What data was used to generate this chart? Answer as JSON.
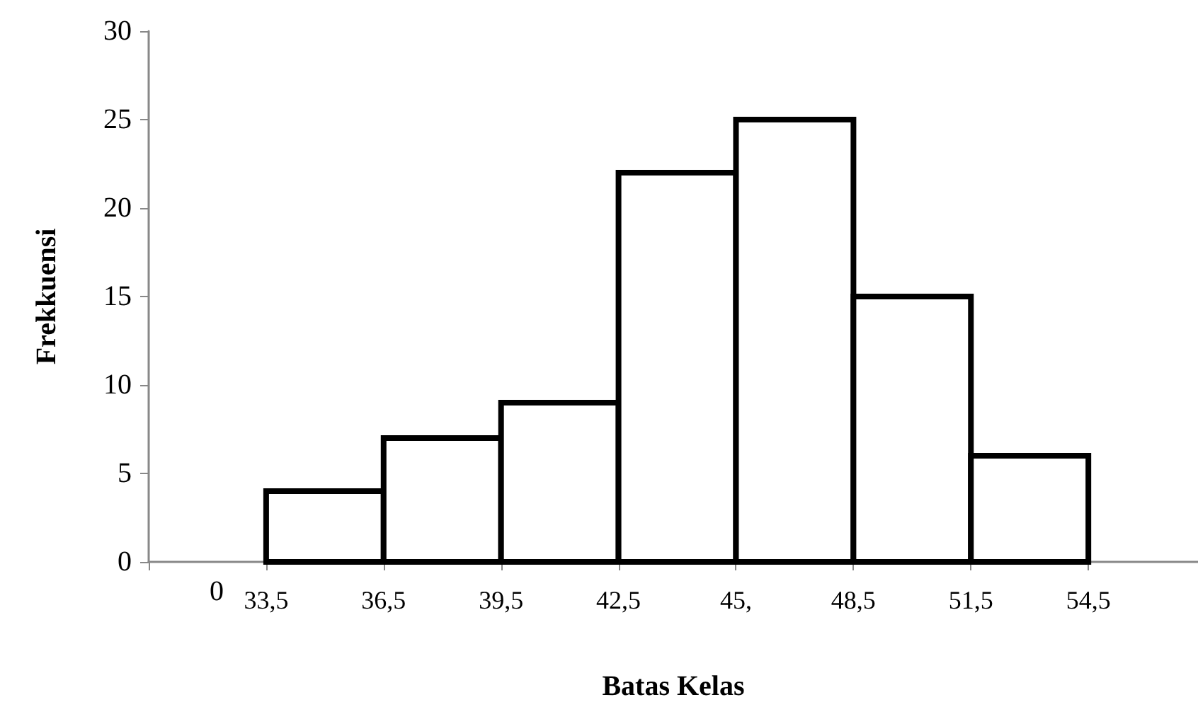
{
  "chart_data": {
    "type": "histogram",
    "xlabel": "Batas Kelas",
    "ylabel": "Frekkuensi",
    "bins": [
      33.5,
      36.5,
      39.5,
      42.5,
      45.5,
      48.5,
      51.5,
      54.5
    ],
    "values": [
      4,
      7,
      9,
      22,
      25,
      15,
      6
    ],
    "color": "#ffffff",
    "xlim": [
      30.5,
      57.3
    ],
    "xticks": [
      {
        "value": 30.5,
        "label": null
      },
      {
        "value": 33.5,
        "label": "33,5"
      },
      {
        "value": 36.5,
        "label": "36,5"
      },
      {
        "value": 39.5,
        "label": "39,5"
      },
      {
        "value": 42.5,
        "label": "42,5"
      },
      {
        "value": 45.5,
        "label": "45,"
      },
      {
        "value": 48.5,
        "label": "48,5"
      },
      {
        "value": 51.5,
        "label": "51,5"
      },
      {
        "value": 54.5,
        "label": "54,5"
      }
    ],
    "ylim": [
      0,
      30
    ],
    "yticks": [
      0,
      5,
      10,
      15,
      20,
      25,
      30
    ],
    "grid": false,
    "annotations": [
      "0"
    ]
  }
}
